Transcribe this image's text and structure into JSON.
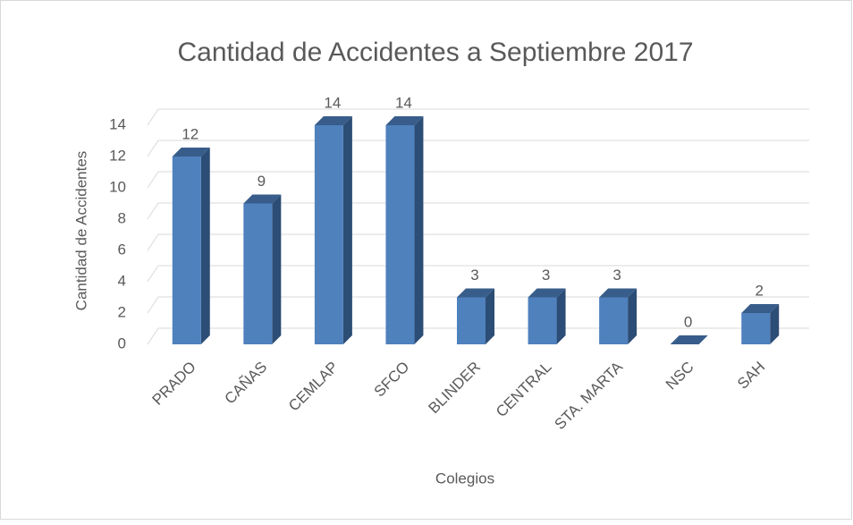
{
  "chart_data": {
    "type": "bar",
    "title": "Cantidad de Accidentes a Septiembre 2017",
    "x_label": "Colegios",
    "y_label": "Cantidad de Accidentes",
    "categories": [
      "PRADO",
      "CAÑAS",
      "CEMLAP",
      "SFCO",
      "BLINDER",
      "CENTRAL",
      "STA. MARTA",
      "NSC",
      "SAH"
    ],
    "values": [
      12,
      9,
      14,
      14,
      3,
      3,
      3,
      0,
      2
    ],
    "color": "#4f81bd",
    "ylim": [
      0,
      14
    ],
    "yticks": [
      0,
      2,
      4,
      6,
      8,
      10,
      12,
      14
    ],
    "grid": true
  }
}
